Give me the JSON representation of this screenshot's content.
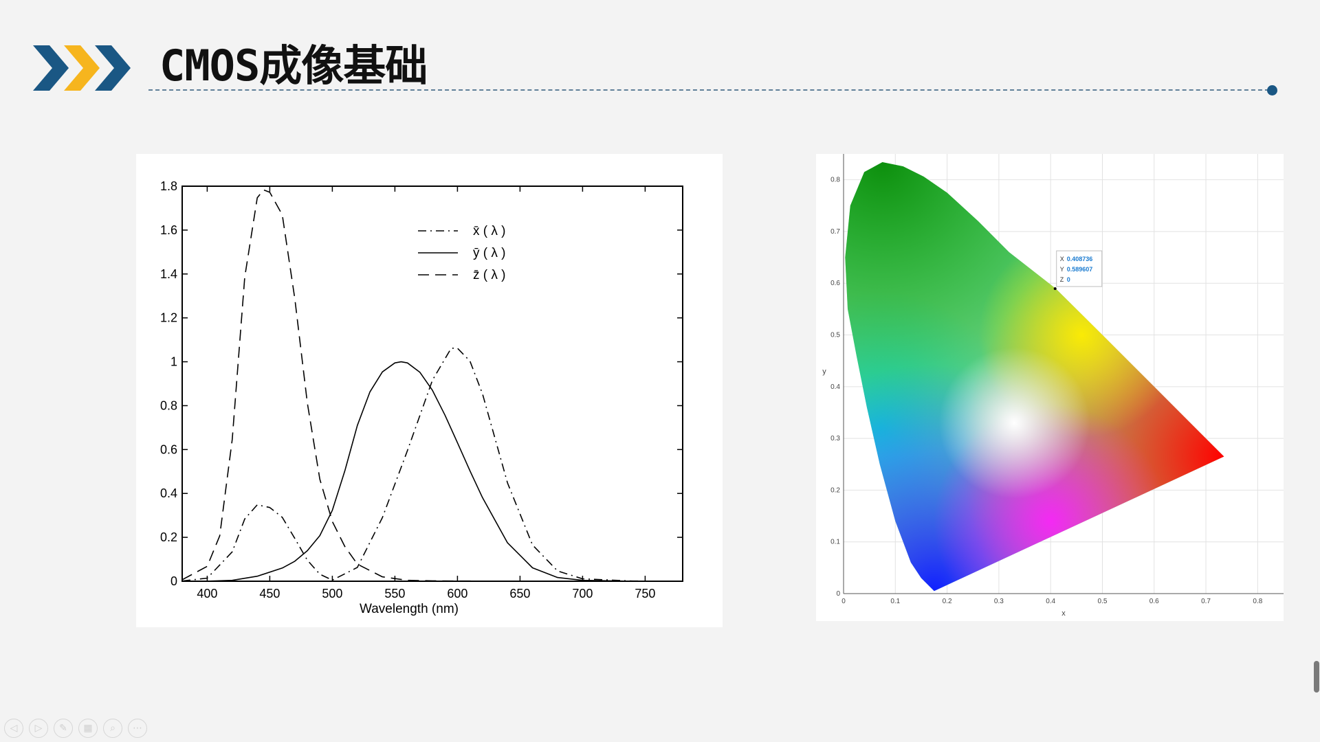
{
  "slide": {
    "title": "CMOS成像基础",
    "colors": {
      "navy": "#1a5784",
      "gold": "#f6b51e",
      "rule": "#5f7f98"
    }
  },
  "left_chart": {
    "chart_data": {
      "type": "line",
      "xlabel": "Wavelength (nm)",
      "ylabel": "",
      "xlim": [
        380,
        780
      ],
      "ylim": [
        0,
        1.8
      ],
      "x_ticks": [
        400,
        450,
        500,
        550,
        600,
        650,
        700,
        750
      ],
      "y_ticks": [
        0,
        0.2,
        0.4,
        0.6,
        0.8,
        1,
        1.2,
        1.4,
        1.6,
        1.8
      ],
      "grid": false,
      "legend_position": "top-right",
      "legend": [
        {
          "text": "x̄ ( λ )",
          "style": "dash-dot"
        },
        {
          "text": "ȳ ( λ )",
          "style": "solid"
        },
        {
          "text": "z̄ ( λ )",
          "style": "dashed"
        }
      ],
      "series": [
        {
          "name": "x̄ ( λ )",
          "x": [
            380,
            400,
            420,
            430,
            440,
            450,
            460,
            470,
            480,
            490,
            500,
            520,
            540,
            560,
            580,
            595,
            600,
            610,
            620,
            640,
            660,
            680,
            700,
            740,
            780
          ],
          "y": [
            0.001,
            0.014,
            0.134,
            0.284,
            0.348,
            0.336,
            0.291,
            0.195,
            0.096,
            0.032,
            0.005,
            0.063,
            0.29,
            0.595,
            0.916,
            1.062,
            1.062,
            1.003,
            0.854,
            0.448,
            0.165,
            0.047,
            0.011,
            0.001,
            0.0
          ]
        },
        {
          "name": "ȳ ( λ )",
          "x": [
            380,
            400,
            420,
            440,
            460,
            470,
            480,
            490,
            500,
            510,
            520,
            530,
            540,
            550,
            555,
            560,
            570,
            580,
            590,
            600,
            610,
            620,
            640,
            660,
            680,
            700,
            740,
            780
          ],
          "y": [
            0.0,
            0.0004,
            0.004,
            0.023,
            0.06,
            0.091,
            0.139,
            0.208,
            0.323,
            0.503,
            0.71,
            0.862,
            0.954,
            0.995,
            1.0,
            0.995,
            0.952,
            0.87,
            0.757,
            0.631,
            0.503,
            0.381,
            0.175,
            0.061,
            0.017,
            0.004,
            0.0,
            0.0
          ]
        },
        {
          "name": "z̄ ( λ )",
          "x": [
            380,
            400,
            410,
            420,
            430,
            440,
            445,
            450,
            460,
            470,
            480,
            490,
            500,
            510,
            520,
            540,
            560,
            580,
            600,
            700,
            780
          ],
          "y": [
            0.007,
            0.068,
            0.207,
            0.646,
            1.386,
            1.747,
            1.783,
            1.772,
            1.669,
            1.288,
            0.813,
            0.465,
            0.272,
            0.158,
            0.078,
            0.02,
            0.004,
            0.002,
            0.001,
            0.0,
            0.0
          ]
        }
      ]
    }
  },
  "right_chart": {
    "chart_data": {
      "type": "scatter",
      "title": "",
      "xlabel": "x",
      "ylabel": "y",
      "xlim": [
        0,
        0.85
      ],
      "ylim": [
        0,
        0.85
      ],
      "x_ticks": [
        0,
        0.1,
        0.2,
        0.3,
        0.4,
        0.5,
        0.6,
        0.7,
        0.8
      ],
      "y_ticks": [
        0,
        0.1,
        0.2,
        0.3,
        0.4,
        0.5,
        0.6,
        0.7,
        0.8
      ],
      "grid": true,
      "gamut_vertices": [
        {
          "label": "green",
          "x": 0.075,
          "y": 0.834,
          "color": "#1fae1f"
        },
        {
          "label": "red",
          "x": 0.735,
          "y": 0.265,
          "color": "#ff1010"
        },
        {
          "label": "blue",
          "x": 0.175,
          "y": 0.005,
          "color": "#1030ff"
        }
      ],
      "datatip": {
        "x_label": "X",
        "x_value": "0.408736",
        "y_label": "Y",
        "y_value": "0.589607",
        "z_label": "Z",
        "z_value": "0",
        "x": 0.4087,
        "y": 0.5896
      }
    }
  },
  "toolbar": {
    "buttons": [
      {
        "name": "previous-slide-button",
        "glyph": "◁"
      },
      {
        "name": "next-slide-button",
        "glyph": "▷"
      },
      {
        "name": "pen-tool-button",
        "glyph": "✎"
      },
      {
        "name": "slide-overview-button",
        "glyph": "▦"
      },
      {
        "name": "zoom-button",
        "glyph": "⌕"
      },
      {
        "name": "more-options-button",
        "glyph": "⋯"
      }
    ]
  }
}
